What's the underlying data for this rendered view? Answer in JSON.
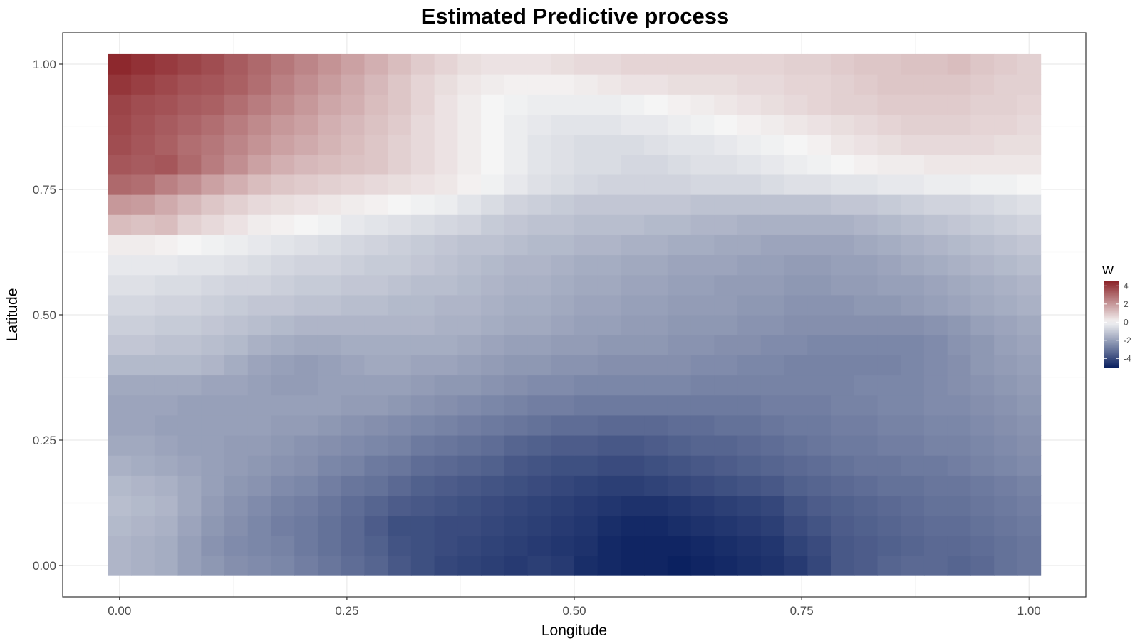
{
  "chart_data": {
    "type": "heatmap",
    "title": "Estimated Predictive process",
    "xlabel": "Longitude",
    "ylabel": "Latitude",
    "xlim": [
      -0.0625,
      1.0625
    ],
    "ylim": [
      -0.0625,
      1.0625
    ],
    "x_ticks": [
      "0.00",
      "0.25",
      "0.50",
      "0.75",
      "1.00"
    ],
    "y_ticks": [
      "0.00",
      "0.25",
      "0.50",
      "0.75",
      "1.00"
    ],
    "x_tick_values": [
      0,
      0.25,
      0.5,
      0.75,
      1.0
    ],
    "y_tick_values": [
      0,
      0.25,
      0.5,
      0.75,
      1.0
    ],
    "grid": true,
    "legend": {
      "title": "W",
      "placement": "right",
      "labels": [
        "4",
        "2",
        "0",
        "-2",
        "-4"
      ],
      "label_values": [
        4,
        2,
        0,
        -2,
        -4
      ],
      "range": [
        -5,
        4.5
      ]
    },
    "colors": {
      "low": "#0b2160",
      "mid": "#f5f5f5",
      "high": "#8b2328",
      "midpoint": 0
    },
    "grid_dims": {
      "nx": 40,
      "ny": 26
    },
    "x_range": [
      0,
      1
    ],
    "y_range": [
      0,
      1
    ],
    "values_note_none": "",
    "values": [
      [
        -1.5,
        -1.6,
        -1.7,
        -2.0,
        -2.2,
        -2.4,
        -2.5,
        -2.6,
        -2.8,
        -3.0,
        -3.2,
        -3.4,
        -3.7,
        -3.9,
        -4.1,
        -4.2,
        -4.3,
        -4.4,
        -4.3,
        -4.4,
        -4.7,
        -4.8,
        -4.9,
        -4.9,
        -5.0,
        -4.9,
        -4.8,
        -4.7,
        -4.6,
        -4.4,
        -4.1,
        -3.7,
        -3.6,
        -3.4,
        -3.3,
        -3.3,
        -3.4,
        -3.3,
        -3.1,
        -3.0
      ],
      [
        -1.5,
        -1.6,
        -1.7,
        -2.0,
        -2.3,
        -2.5,
        -2.6,
        -2.7,
        -2.9,
        -3.1,
        -3.3,
        -3.5,
        -3.8,
        -3.9,
        -4.0,
        -4.1,
        -4.2,
        -4.3,
        -4.4,
        -4.5,
        -4.6,
        -4.8,
        -4.9,
        -4.9,
        -4.9,
        -4.8,
        -4.7,
        -4.6,
        -4.5,
        -4.2,
        -4.0,
        -3.7,
        -3.6,
        -3.5,
        -3.4,
        -3.3,
        -3.3,
        -3.2,
        -3.1,
        -3.0
      ],
      [
        -1.4,
        -1.5,
        -1.6,
        -1.9,
        -2.2,
        -2.4,
        -2.6,
        -2.8,
        -2.9,
        -3.1,
        -3.3,
        -3.6,
        -3.9,
        -3.9,
        -4.0,
        -4.0,
        -4.1,
        -4.2,
        -4.3,
        -4.4,
        -4.5,
        -4.7,
        -4.8,
        -4.8,
        -4.7,
        -4.6,
        -4.5,
        -4.4,
        -4.3,
        -4.0,
        -3.8,
        -3.6,
        -3.5,
        -3.4,
        -3.3,
        -3.2,
        -3.2,
        -3.1,
        -3.0,
        -2.9
      ],
      [
        -1.3,
        -1.4,
        -1.5,
        -1.8,
        -2.1,
        -2.3,
        -2.5,
        -2.7,
        -2.8,
        -3.0,
        -3.2,
        -3.4,
        -3.6,
        -3.7,
        -3.8,
        -3.9,
        -4.0,
        -4.1,
        -4.2,
        -4.3,
        -4.4,
        -4.5,
        -4.6,
        -4.6,
        -4.5,
        -4.4,
        -4.3,
        -4.2,
        -4.1,
        -3.8,
        -3.6,
        -3.5,
        -3.4,
        -3.3,
        -3.2,
        -3.1,
        -3.1,
        -3.0,
        -2.9,
        -2.8
      ],
      [
        -1.4,
        -1.5,
        -1.6,
        -1.8,
        -2.0,
        -2.2,
        -2.3,
        -2.5,
        -2.6,
        -2.8,
        -3.0,
        -3.1,
        -3.3,
        -3.5,
        -3.6,
        -3.7,
        -3.8,
        -3.9,
        -4.0,
        -4.1,
        -4.2,
        -4.3,
        -4.3,
        -4.2,
        -4.1,
        -4.0,
        -3.9,
        -3.8,
        -3.7,
        -3.5,
        -3.4,
        -3.3,
        -3.2,
        -3.1,
        -3.1,
        -3.0,
        -3.0,
        -2.9,
        -2.8,
        -2.7
      ],
      [
        -1.6,
        -1.7,
        -1.8,
        -1.9,
        -2.0,
        -2.1,
        -2.2,
        -2.3,
        -2.4,
        -2.6,
        -2.7,
        -2.9,
        -3.0,
        -3.2,
        -3.3,
        -3.4,
        -3.5,
        -3.7,
        -3.8,
        -3.9,
        -3.9,
        -4.0,
        -4.0,
        -3.9,
        -3.8,
        -3.7,
        -3.6,
        -3.5,
        -3.4,
        -3.3,
        -3.2,
        -3.1,
        -3.0,
        -3.0,
        -2.9,
        -2.9,
        -2.8,
        -2.7,
        -2.6,
        -2.5
      ],
      [
        -1.8,
        -1.8,
        -1.9,
        -2.0,
        -2.0,
        -2.1,
        -2.1,
        -2.2,
        -2.3,
        -2.4,
        -2.5,
        -2.6,
        -2.7,
        -2.9,
        -3.0,
        -3.1,
        -3.2,
        -3.4,
        -3.5,
        -3.6,
        -3.6,
        -3.7,
        -3.7,
        -3.6,
        -3.5,
        -3.4,
        -3.4,
        -3.3,
        -3.2,
        -3.1,
        -3.0,
        -2.9,
        -2.9,
        -2.8,
        -2.8,
        -2.7,
        -2.7,
        -2.6,
        -2.5,
        -2.4
      ],
      [
        -1.9,
        -1.9,
        -2.0,
        -2.0,
        -2.0,
        -2.0,
        -2.0,
        -2.1,
        -2.1,
        -2.2,
        -2.3,
        -2.4,
        -2.5,
        -2.6,
        -2.7,
        -2.8,
        -2.9,
        -3.0,
        -3.1,
        -3.2,
        -3.2,
        -3.3,
        -3.3,
        -3.3,
        -3.2,
        -3.2,
        -3.1,
        -3.1,
        -3.0,
        -2.9,
        -2.9,
        -2.8,
        -2.8,
        -2.7,
        -2.7,
        -2.6,
        -2.6,
        -2.5,
        -2.4,
        -2.3
      ],
      [
        -1.9,
        -1.9,
        -1.9,
        -2.0,
        -2.0,
        -2.0,
        -2.0,
        -2.0,
        -2.0,
        -2.0,
        -2.1,
        -2.1,
        -2.2,
        -2.3,
        -2.4,
        -2.5,
        -2.6,
        -2.7,
        -2.8,
        -2.8,
        -2.9,
        -2.9,
        -2.9,
        -2.9,
        -2.9,
        -2.9,
        -2.9,
        -2.9,
        -2.8,
        -2.8,
        -2.8,
        -2.7,
        -2.7,
        -2.6,
        -2.6,
        -2.5,
        -2.5,
        -2.4,
        -2.3,
        -2.2
      ],
      [
        -1.8,
        -1.8,
        -1.8,
        -1.8,
        -1.9,
        -1.9,
        -2.0,
        -2.1,
        -2.1,
        -2.0,
        -2.0,
        -2.0,
        -2.0,
        -2.1,
        -2.2,
        -2.2,
        -2.3,
        -2.4,
        -2.5,
        -2.5,
        -2.6,
        -2.6,
        -2.6,
        -2.6,
        -2.6,
        -2.7,
        -2.7,
        -2.7,
        -2.7,
        -2.7,
        -2.7,
        -2.7,
        -2.6,
        -2.6,
        -2.6,
        -2.5,
        -2.4,
        -2.3,
        -2.2,
        -2.1
      ],
      [
        -1.4,
        -1.4,
        -1.4,
        -1.4,
        -1.5,
        -1.7,
        -1.9,
        -2.0,
        -2.1,
        -2.0,
        -1.9,
        -1.8,
        -1.8,
        -1.9,
        -1.9,
        -2.0,
        -2.1,
        -2.2,
        -2.2,
        -2.3,
        -2.3,
        -2.4,
        -2.4,
        -2.4,
        -2.4,
        -2.5,
        -2.5,
        -2.6,
        -2.6,
        -2.7,
        -2.7,
        -2.7,
        -2.7,
        -2.7,
        -2.6,
        -2.5,
        -2.4,
        -2.2,
        -2.1,
        -2.0
      ],
      [
        -1.1,
        -1.1,
        -1.2,
        -1.2,
        -1.3,
        -1.4,
        -1.6,
        -1.7,
        -1.8,
        -1.8,
        -1.7,
        -1.7,
        -1.7,
        -1.7,
        -1.7,
        -1.8,
        -1.9,
        -2.0,
        -2.0,
        -2.1,
        -2.1,
        -2.2,
        -2.2,
        -2.2,
        -2.3,
        -2.3,
        -2.4,
        -2.4,
        -2.5,
        -2.5,
        -2.6,
        -2.6,
        -2.6,
        -2.6,
        -2.6,
        -2.5,
        -2.3,
        -2.2,
        -2.0,
        -1.9
      ],
      [
        -0.9,
        -0.9,
        -1.0,
        -1.0,
        -1.1,
        -1.2,
        -1.3,
        -1.4,
        -1.5,
        -1.5,
        -1.5,
        -1.5,
        -1.5,
        -1.5,
        -1.6,
        -1.6,
        -1.7,
        -1.8,
        -1.8,
        -1.9,
        -2.0,
        -2.0,
        -2.1,
        -2.1,
        -2.2,
        -2.2,
        -2.2,
        -2.3,
        -2.3,
        -2.4,
        -2.4,
        -2.4,
        -2.4,
        -2.4,
        -2.4,
        -2.3,
        -2.2,
        -2.0,
        -1.9,
        -1.8
      ],
      [
        -0.7,
        -0.7,
        -0.8,
        -0.8,
        -0.9,
        -1.0,
        -1.1,
        -1.1,
        -1.2,
        -1.2,
        -1.3,
        -1.3,
        -1.4,
        -1.4,
        -1.5,
        -1.5,
        -1.6,
        -1.7,
        -1.7,
        -1.8,
        -1.9,
        -1.9,
        -2.0,
        -2.0,
        -2.1,
        -2.1,
        -2.1,
        -2.2,
        -2.2,
        -2.3,
        -2.3,
        -2.3,
        -2.2,
        -2.2,
        -2.1,
        -2.0,
        -1.9,
        -1.8,
        -1.7,
        -1.6
      ],
      [
        -0.5,
        -0.5,
        -0.6,
        -0.6,
        -0.7,
        -0.8,
        -0.8,
        -0.9,
        -1.0,
        -1.0,
        -1.1,
        -1.1,
        -1.2,
        -1.3,
        -1.3,
        -1.4,
        -1.5,
        -1.6,
        -1.6,
        -1.7,
        -1.8,
        -1.8,
        -1.9,
        -1.9,
        -2.0,
        -2.0,
        -2.1,
        -2.1,
        -2.1,
        -2.2,
        -2.2,
        -2.1,
        -2.1,
        -2.0,
        -2.0,
        -1.9,
        -1.8,
        -1.7,
        -1.6,
        -1.5
      ],
      [
        -0.3,
        -0.3,
        -0.3,
        -0.4,
        -0.4,
        -0.5,
        -0.6,
        -0.7,
        -0.8,
        -0.8,
        -0.9,
        -1.0,
        -1.0,
        -1.1,
        -1.2,
        -1.3,
        -1.4,
        -1.5,
        -1.5,
        -1.6,
        -1.7,
        -1.7,
        -1.8,
        -1.8,
        -1.9,
        -1.9,
        -1.9,
        -2.0,
        -2.0,
        -2.1,
        -2.1,
        -2.0,
        -2.0,
        -1.9,
        -1.8,
        -1.7,
        -1.6,
        -1.5,
        -1.4,
        -1.3
      ],
      [
        0.2,
        0.2,
        0.1,
        0.0,
        -0.1,
        -0.2,
        -0.3,
        -0.4,
        -0.5,
        -0.6,
        -0.7,
        -0.8,
        -0.9,
        -1.0,
        -1.1,
        -1.2,
        -1.2,
        -1.3,
        -1.4,
        -1.4,
        -1.5,
        -1.5,
        -1.6,
        -1.6,
        -1.7,
        -1.7,
        -1.8,
        -1.8,
        -1.9,
        -1.9,
        -1.9,
        -1.9,
        -1.8,
        -1.7,
        -1.6,
        -1.5,
        -1.4,
        -1.3,
        -1.2,
        -1.1
      ],
      [
        1.2,
        1.1,
        1.2,
        0.8,
        0.6,
        0.4,
        0.2,
        0.1,
        0.0,
        -0.1,
        -0.3,
        -0.4,
        -0.5,
        -0.6,
        -0.7,
        -0.8,
        -1.0,
        -1.1,
        -1.2,
        -1.2,
        -1.3,
        -1.3,
        -1.3,
        -1.4,
        -1.4,
        -1.5,
        -1.5,
        -1.6,
        -1.6,
        -1.6,
        -1.6,
        -1.6,
        -1.5,
        -1.4,
        -1.3,
        -1.2,
        -1.1,
        -1.0,
        -0.9,
        -0.8
      ],
      [
        2.0,
        1.9,
        1.6,
        1.3,
        1.0,
        0.8,
        0.6,
        0.5,
        0.4,
        0.3,
        0.2,
        0.1,
        0.0,
        -0.1,
        -0.2,
        -0.4,
        -0.6,
        -0.8,
        -0.9,
        -1.0,
        -1.1,
        -1.1,
        -1.1,
        -1.1,
        -1.1,
        -1.2,
        -1.2,
        -1.2,
        -1.2,
        -1.2,
        -1.2,
        -1.1,
        -1.1,
        -1.0,
        -0.9,
        -0.8,
        -0.8,
        -0.7,
        -0.6,
        -0.5
      ],
      [
        3.0,
        2.9,
        2.5,
        2.2,
        1.8,
        1.5,
        1.2,
        1.0,
        0.9,
        0.8,
        0.7,
        0.6,
        0.5,
        0.4,
        0.3,
        0.1,
        -0.1,
        -0.3,
        -0.5,
        -0.6,
        -0.7,
        -0.8,
        -0.8,
        -0.8,
        -0.8,
        -0.7,
        -0.7,
        -0.7,
        -0.6,
        -0.5,
        -0.5,
        -0.4,
        -0.4,
        -0.3,
        -0.3,
        -0.2,
        -0.2,
        -0.1,
        -0.1,
        0.0
      ],
      [
        3.4,
        3.3,
        3.4,
        3.0,
        2.6,
        2.2,
        1.8,
        1.5,
        1.3,
        1.2,
        1.1,
        1.0,
        0.8,
        0.6,
        0.4,
        0.2,
        0.0,
        -0.2,
        -0.4,
        -0.5,
        -0.6,
        -0.6,
        -0.7,
        -0.7,
        -0.6,
        -0.5,
        -0.5,
        -0.4,
        -0.3,
        -0.2,
        -0.1,
        0.0,
        0.1,
        0.2,
        0.2,
        0.3,
        0.3,
        0.3,
        0.3,
        0.3
      ],
      [
        3.6,
        3.4,
        3.2,
        2.9,
        2.7,
        2.4,
        2.1,
        1.8,
        1.6,
        1.4,
        1.2,
        1.0,
        0.8,
        0.6,
        0.4,
        0.2,
        0.0,
        -0.2,
        -0.4,
        -0.5,
        -0.6,
        -0.6,
        -0.6,
        -0.5,
        -0.4,
        -0.4,
        -0.3,
        -0.2,
        -0.1,
        0.0,
        0.1,
        0.3,
        0.4,
        0.5,
        0.6,
        0.6,
        0.6,
        0.6,
        0.5,
        0.5
      ],
      [
        3.7,
        3.5,
        3.3,
        3.1,
        2.9,
        2.6,
        2.3,
        2.0,
        1.8,
        1.5,
        1.3,
        1.1,
        0.9,
        0.6,
        0.4,
        0.2,
        0.0,
        -0.2,
        -0.3,
        -0.4,
        -0.4,
        -0.4,
        -0.3,
        -0.3,
        -0.2,
        -0.1,
        0.0,
        0.1,
        0.2,
        0.3,
        0.4,
        0.5,
        0.6,
        0.7,
        0.8,
        0.8,
        0.8,
        0.7,
        0.7,
        0.6
      ],
      [
        3.8,
        3.6,
        3.5,
        3.3,
        3.2,
        2.9,
        2.6,
        2.3,
        2.0,
        1.7,
        1.5,
        1.2,
        1.0,
        0.7,
        0.4,
        0.2,
        0.0,
        -0.1,
        -0.2,
        -0.2,
        -0.2,
        -0.2,
        -0.1,
        0.0,
        0.1,
        0.2,
        0.3,
        0.4,
        0.5,
        0.6,
        0.7,
        0.8,
        0.8,
        0.9,
        0.9,
        0.9,
        0.9,
        0.8,
        0.8,
        0.7
      ],
      [
        4.1,
        3.9,
        3.7,
        3.5,
        3.4,
        3.2,
        2.9,
        2.5,
        2.2,
        1.9,
        1.6,
        1.3,
        1.0,
        0.7,
        0.5,
        0.3,
        0.2,
        0.1,
        0.1,
        0.1,
        0.2,
        0.3,
        0.4,
        0.4,
        0.5,
        0.5,
        0.5,
        0.6,
        0.6,
        0.7,
        0.7,
        0.8,
        0.9,
        1.0,
        1.0,
        1.0,
        1.0,
        0.9,
        0.8,
        0.8
      ],
      [
        4.4,
        4.2,
        4.0,
        3.8,
        3.6,
        3.3,
        3.0,
        2.7,
        2.4,
        2.1,
        1.8,
        1.5,
        1.2,
        0.9,
        0.7,
        0.5,
        0.4,
        0.4,
        0.4,
        0.5,
        0.6,
        0.6,
        0.7,
        0.7,
        0.7,
        0.7,
        0.7,
        0.7,
        0.7,
        0.8,
        0.8,
        0.9,
        1.0,
        1.0,
        1.1,
        1.1,
        1.2,
        1.0,
        0.9,
        0.8
      ]
    ]
  }
}
